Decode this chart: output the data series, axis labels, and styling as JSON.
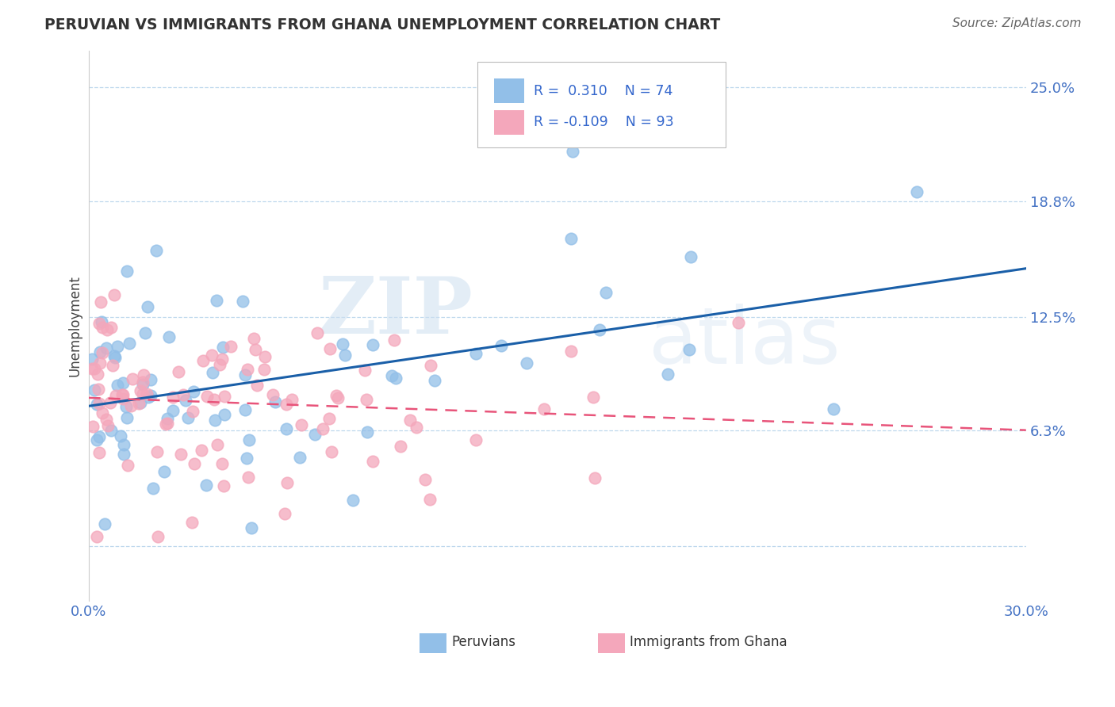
{
  "title": "PERUVIAN VS IMMIGRANTS FROM GHANA UNEMPLOYMENT CORRELATION CHART",
  "source": "Source: ZipAtlas.com",
  "xmin": 0.0,
  "xmax": 0.3,
  "ymin": -0.03,
  "ymax": 0.27,
  "blue_color": "#92bfe8",
  "pink_color": "#f4a7bb",
  "blue_line_color": "#1a5fa8",
  "pink_line_color": "#e8547a",
  "R_blue": 0.31,
  "N_blue": 74,
  "R_pink": -0.109,
  "N_pink": 93,
  "blue_seed": 42,
  "pink_seed": 17,
  "watermark_zip": "ZIP",
  "watermark_atlas": "atlas",
  "ylabel": "Unemployment",
  "ytick_vals": [
    0.0,
    0.063,
    0.125,
    0.188,
    0.25
  ],
  "ytick_labels": [
    "",
    "6.3%",
    "12.5%",
    "18.8%",
    "25.0%"
  ],
  "xtick_vals": [
    0.0,
    0.05,
    0.1,
    0.15,
    0.2,
    0.25,
    0.3
  ],
  "xtick_labels": [
    "0.0%",
    "",
    "",
    "",
    "",
    "",
    "30.0%"
  ],
  "legend_label1": "Peruvians",
  "legend_label2": "Immigrants from Ghana",
  "legend_r1": "R =  0.310",
  "legend_n1": "N = 74",
  "legend_r2": "R = -0.109",
  "legend_n2": "N = 93"
}
